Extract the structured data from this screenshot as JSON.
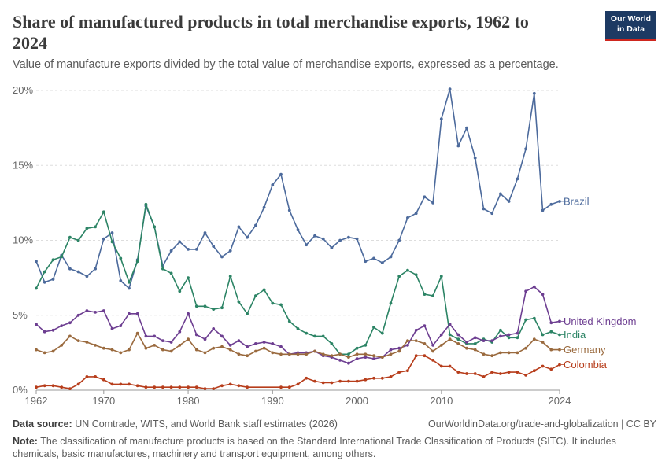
{
  "header": {
    "title": "Share of manufactured products in total merchandise exports, 1962 to 2024",
    "subtitle": "Value of manufacture exports divided by the total value of merchandise exports, expressed as a percentage.",
    "logo_line1": "Our World",
    "logo_line2": "in Data"
  },
  "footer": {
    "source_label": "Data source:",
    "source_text": " UN Comtrade, WITS, and World Bank staff estimates (2026)",
    "url": "OurWorldinData.org/trade-and-globalization | CC BY",
    "note_label": "Note:",
    "note_text": " The classification of manufacture products is based on the Standard International Trade Classification of Products (SITC). It includes chemicals, basic manufactures, machinery and transport equipment, among others."
  },
  "colors": {
    "grid": "#dddddd",
    "axis_text": "#666666"
  },
  "chart_data": {
    "type": "line",
    "title": "Share of manufactured products in total merchandise exports, 1962 to 2024",
    "ylim": [
      0,
      20
    ],
    "xlim": [
      1962,
      2024
    ],
    "y_ticks": [
      0,
      5,
      10,
      15,
      20
    ],
    "y_tick_labels": [
      "0%",
      "5%",
      "10%",
      "15%",
      "20%"
    ],
    "x_ticks": [
      1962,
      1970,
      1980,
      1990,
      2000,
      2010,
      2024
    ],
    "x_tick_labels": [
      "1962",
      "1970",
      "1980",
      "1990",
      "2000",
      "2010",
      "2024"
    ],
    "grid": "horizontal dashed",
    "legend": "labels at line ends (right)",
    "series": [
      {
        "name": "Brazil",
        "color": "#4c6a9c",
        "x": [
          1962,
          1963,
          1964,
          1965,
          1966,
          1967,
          1968,
          1969,
          1970,
          1971,
          1972,
          1973,
          1974,
          1975,
          1976,
          1977,
          1978,
          1979,
          1980,
          1981,
          1982,
          1983,
          1984,
          1985,
          1986,
          1987,
          1988,
          1989,
          1990,
          1991,
          1992,
          1993,
          1994,
          1995,
          1996,
          1997,
          1998,
          1999,
          2000,
          2001,
          2002,
          2003,
          2004,
          2005,
          2006,
          2007,
          2008,
          2009,
          2010,
          2011,
          2012,
          2013,
          2014,
          2015,
          2016,
          2017,
          2018,
          2019,
          2020,
          2021,
          2022,
          2023,
          2024
        ],
        "values": [
          8.6,
          7.2,
          7.4,
          9.0,
          8.1,
          7.9,
          7.6,
          8.1,
          10.1,
          10.5,
          7.3,
          6.8,
          8.7,
          12.3,
          10.9,
          8.3,
          9.3,
          9.9,
          9.4,
          9.4,
          10.5,
          9.6,
          8.9,
          9.3,
          10.9,
          10.2,
          11.0,
          12.2,
          13.7,
          14.4,
          12.0,
          10.7,
          9.7,
          10.3,
          10.1,
          9.5,
          10.0,
          10.2,
          10.1,
          8.6,
          8.8,
          8.5,
          8.9,
          10.0,
          11.5,
          11.8,
          12.9,
          12.5,
          18.1,
          20.1,
          16.3,
          17.5,
          15.5,
          12.1,
          11.8,
          13.1,
          12.6,
          14.1,
          16.1,
          19.8,
          12.0,
          12.4,
          12.6
        ]
      },
      {
        "name": "India",
        "color": "#2c8465",
        "x": [
          1962,
          1963,
          1964,
          1965,
          1966,
          1967,
          1968,
          1969,
          1970,
          1971,
          1972,
          1973,
          1974,
          1975,
          1976,
          1977,
          1978,
          1979,
          1980,
          1981,
          1982,
          1983,
          1984,
          1985,
          1986,
          1987,
          1988,
          1989,
          1990,
          1991,
          1992,
          1993,
          1994,
          1995,
          1996,
          1997,
          1998,
          1999,
          2000,
          2001,
          2002,
          2003,
          2004,
          2005,
          2006,
          2007,
          2008,
          2009,
          2010,
          2011,
          2012,
          2013,
          2014,
          2015,
          2016,
          2017,
          2018,
          2019,
          2020,
          2021,
          2022,
          2023,
          2024
        ],
        "values": [
          6.8,
          7.9,
          8.7,
          8.9,
          10.2,
          10.0,
          10.8,
          10.9,
          11.9,
          9.9,
          8.8,
          7.2,
          8.6,
          12.4,
          10.9,
          8.1,
          7.8,
          6.6,
          7.5,
          5.6,
          5.6,
          5.4,
          5.5,
          7.6,
          5.9,
          5.1,
          6.3,
          6.7,
          5.8,
          5.7,
          4.6,
          4.1,
          3.8,
          3.6,
          3.6,
          3.1,
          2.4,
          2.4,
          2.8,
          3.0,
          4.2,
          3.8,
          5.8,
          7.6,
          8.0,
          7.7,
          6.4,
          6.3,
          7.6,
          3.7,
          3.4,
          3.1,
          3.1,
          3.4,
          3.2,
          4.0,
          3.5,
          3.5,
          4.7,
          4.8,
          3.7,
          3.9,
          3.7
        ]
      },
      {
        "name": "United Kingdom",
        "color": "#6d3e91",
        "x": [
          1962,
          1963,
          1964,
          1965,
          1966,
          1967,
          1968,
          1969,
          1970,
          1971,
          1972,
          1973,
          1974,
          1975,
          1976,
          1977,
          1978,
          1979,
          1980,
          1981,
          1982,
          1983,
          1984,
          1985,
          1986,
          1987,
          1988,
          1989,
          1990,
          1991,
          1992,
          1993,
          1994,
          1995,
          1996,
          1997,
          1998,
          1999,
          2000,
          2001,
          2002,
          2003,
          2004,
          2005,
          2006,
          2007,
          2008,
          2009,
          2010,
          2011,
          2012,
          2013,
          2014,
          2015,
          2016,
          2017,
          2018,
          2019,
          2020,
          2021,
          2022,
          2023,
          2024
        ],
        "values": [
          4.4,
          3.9,
          4.0,
          4.3,
          4.5,
          5.0,
          5.3,
          5.2,
          5.3,
          4.1,
          4.3,
          5.1,
          5.1,
          3.6,
          3.6,
          3.3,
          3.2,
          3.9,
          5.1,
          3.7,
          3.4,
          4.1,
          3.6,
          3.0,
          3.3,
          2.9,
          3.1,
          3.2,
          3.1,
          2.9,
          2.4,
          2.5,
          2.5,
          2.6,
          2.3,
          2.2,
          2.0,
          1.8,
          2.1,
          2.2,
          2.1,
          2.2,
          2.7,
          2.8,
          3.0,
          4.0,
          4.3,
          3.0,
          3.7,
          4.4,
          3.7,
          3.2,
          3.5,
          3.3,
          3.3,
          3.6,
          3.7,
          3.8,
          6.6,
          6.9,
          6.4,
          4.5,
          4.6
        ]
      },
      {
        "name": "Germany",
        "color": "#9a6a3e",
        "x": [
          1962,
          1963,
          1964,
          1965,
          1966,
          1967,
          1968,
          1969,
          1970,
          1971,
          1972,
          1973,
          1974,
          1975,
          1976,
          1977,
          1978,
          1979,
          1980,
          1981,
          1982,
          1983,
          1984,
          1985,
          1986,
          1987,
          1988,
          1989,
          1990,
          1991,
          1992,
          1993,
          1994,
          1995,
          1996,
          1997,
          1998,
          1999,
          2000,
          2001,
          2002,
          2003,
          2004,
          2005,
          2006,
          2007,
          2008,
          2009,
          2010,
          2011,
          2012,
          2013,
          2014,
          2015,
          2016,
          2017,
          2018,
          2019,
          2020,
          2021,
          2022,
          2023,
          2024
        ],
        "values": [
          2.7,
          2.5,
          2.6,
          3.0,
          3.6,
          3.3,
          3.2,
          3.0,
          2.8,
          2.7,
          2.5,
          2.7,
          3.8,
          2.8,
          3.0,
          2.7,
          2.6,
          3.0,
          3.4,
          2.7,
          2.5,
          2.8,
          2.9,
          2.7,
          2.4,
          2.3,
          2.6,
          2.8,
          2.5,
          2.4,
          2.4,
          2.4,
          2.4,
          2.6,
          2.4,
          2.3,
          2.4,
          2.2,
          2.4,
          2.4,
          2.3,
          2.2,
          2.4,
          2.6,
          3.3,
          3.3,
          3.1,
          2.6,
          3.0,
          3.4,
          3.1,
          2.8,
          2.7,
          2.4,
          2.3,
          2.5,
          2.5,
          2.5,
          2.8,
          3.4,
          3.2,
          2.7,
          2.7
        ]
      },
      {
        "name": "Colombia",
        "color": "#b73d1b",
        "x": [
          1962,
          1963,
          1964,
          1965,
          1966,
          1967,
          1968,
          1969,
          1970,
          1971,
          1972,
          1973,
          1974,
          1975,
          1976,
          1977,
          1978,
          1979,
          1980,
          1981,
          1982,
          1983,
          1984,
          1985,
          1986,
          1987,
          1991,
          1992,
          1993,
          1994,
          1995,
          1996,
          1997,
          1998,
          1999,
          2000,
          2001,
          2002,
          2003,
          2004,
          2005,
          2006,
          2007,
          2008,
          2009,
          2010,
          2011,
          2012,
          2013,
          2014,
          2015,
          2016,
          2017,
          2018,
          2019,
          2020,
          2021,
          2022,
          2023,
          2024
        ],
        "values": [
          0.2,
          0.3,
          0.3,
          0.2,
          0.1,
          0.4,
          0.9,
          0.9,
          0.7,
          0.4,
          0.4,
          0.4,
          0.3,
          0.2,
          0.2,
          0.2,
          0.2,
          0.2,
          0.2,
          0.2,
          0.1,
          0.1,
          0.3,
          0.4,
          0.3,
          0.2,
          0.2,
          0.2,
          0.4,
          0.8,
          0.6,
          0.5,
          0.5,
          0.6,
          0.6,
          0.6,
          0.7,
          0.8,
          0.8,
          0.9,
          1.2,
          1.3,
          2.3,
          2.3,
          2.0,
          1.6,
          1.6,
          1.2,
          1.1,
          1.1,
          0.9,
          1.2,
          1.1,
          1.2,
          1.2,
          1.0,
          1.3,
          1.6,
          1.4,
          1.7
        ]
      }
    ]
  }
}
